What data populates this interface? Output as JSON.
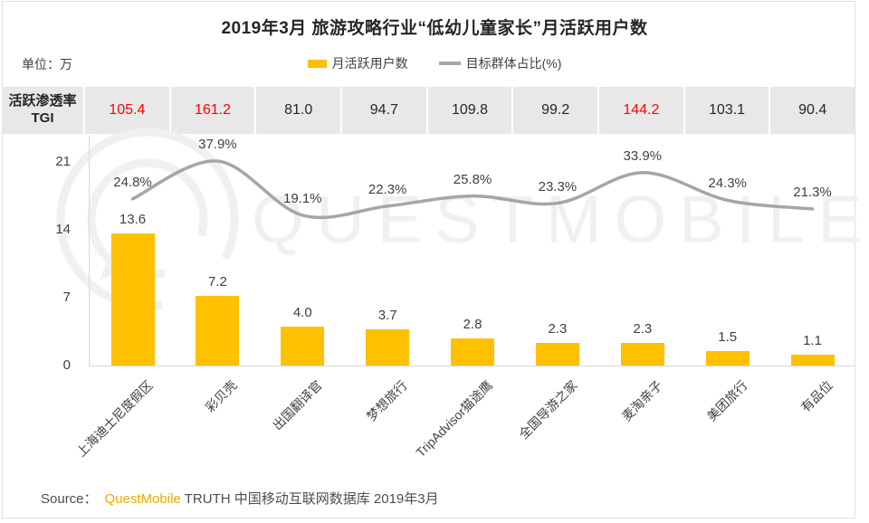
{
  "title": "2019年3月 旅游攻略行业“低幼儿童家长”月活跃用户数",
  "unit_label": "单位：万",
  "legend": {
    "bar_label": "月活跃用户数",
    "line_label": "目标群体占比(%)",
    "bar_color": "#FFC000",
    "line_color": "#A6A6A6"
  },
  "tgi": {
    "label_line1": "活跃渗透率",
    "label_line2": "TGI",
    "values": [
      "105.4",
      "161.2",
      "81.0",
      "94.7",
      "109.8",
      "99.2",
      "144.2",
      "103.1",
      "90.4"
    ],
    "highlight": [
      true,
      true,
      false,
      false,
      false,
      false,
      true,
      false,
      false
    ],
    "highlight_color": "#FF0000"
  },
  "chart_data": {
    "type": "bar",
    "categories": [
      "上海迪士尼度假区",
      "彩贝壳",
      "出国翻译官",
      "梦想旅行",
      "TripAdvisor猫途鹰",
      "全国导游之家",
      "麦淘亲子",
      "美团旅行",
      "有品位"
    ],
    "series": [
      {
        "name": "月活跃用户数",
        "type": "bar",
        "unit": "万",
        "values": [
          13.6,
          7.2,
          4.0,
          3.7,
          2.8,
          2.3,
          2.3,
          1.5,
          1.1
        ],
        "labels": [
          "13.6",
          "7.2",
          "4.0",
          "3.7",
          "2.8",
          "2.3",
          "2.3",
          "1.5",
          "1.1"
        ],
        "color": "#FFC000"
      },
      {
        "name": "目标群体占比(%)",
        "type": "line",
        "values": [
          24.8,
          37.9,
          19.1,
          22.3,
          25.8,
          23.3,
          33.9,
          24.3,
          21.3
        ],
        "labels": [
          "24.8%",
          "37.9%",
          "19.1%",
          "22.3%",
          "25.8%",
          "23.3%",
          "33.9%",
          "24.3%",
          "21.3%"
        ],
        "color": "#A6A6A6"
      }
    ],
    "tgi_values": [
      105.4,
      161.2,
      81.0,
      94.7,
      109.8,
      99.2,
      144.2,
      103.1,
      90.4
    ],
    "title": "2019年3月 旅游攻略行业“低幼儿童家长”月活跃用户数",
    "ylabel": "单位：万",
    "yticks": [
      0,
      7,
      14,
      21
    ],
    "ylim": [
      0,
      23.7
    ],
    "grid": false,
    "legend_position": "top-center"
  },
  "watermark": "QUESTMOBILE",
  "source": {
    "prefix": "Source：",
    "brand": "QuestMobile",
    "suffix": "TRUTH 中国移动互联网数据库 2019年3月"
  }
}
